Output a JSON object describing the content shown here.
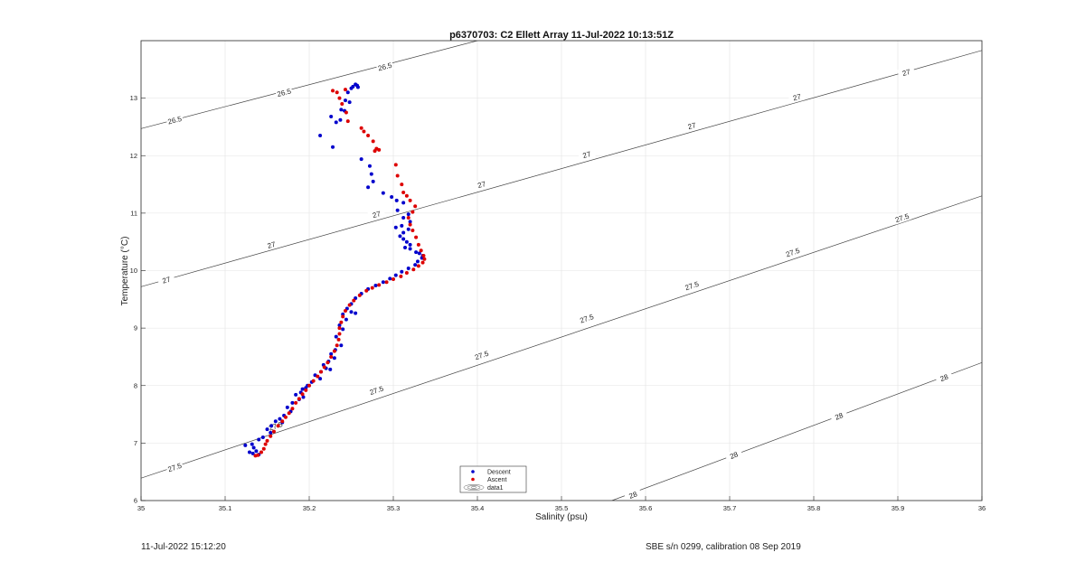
{
  "chart_data": {
    "type": "scatter",
    "title": "p6370703: C2 Ellett Array 11-Jul-2022 10:13:51Z",
    "xlabel": "Salinity (psu)",
    "ylabel": "Temperature (°C)",
    "xlim": [
      35,
      36
    ],
    "ylim": [
      6,
      14
    ],
    "xticks": [
      35,
      35.1,
      35.2,
      35.3,
      35.4,
      35.5,
      35.6,
      35.7,
      35.8,
      35.9,
      36
    ],
    "xtick_labels": [
      "35",
      "35.1",
      "35.2",
      "35.3",
      "35.4",
      "35.5",
      "35.6",
      "35.7",
      "35.8",
      "35.9",
      "36"
    ],
    "yticks": [
      6,
      7,
      8,
      9,
      10,
      11,
      12,
      13
    ],
    "ytick_labels": [
      "6",
      "7",
      "8",
      "9",
      "10",
      "11",
      "12",
      "13"
    ],
    "grid": true,
    "legend_position": "bottom-center",
    "legend": [
      {
        "name": "Descent",
        "color": "#0000cc",
        "marker": "dot"
      },
      {
        "name": "Ascent",
        "color": "#dd0000",
        "marker": "dot"
      },
      {
        "name": "data1",
        "color": "#555555",
        "marker": "contour"
      }
    ],
    "contours": [
      {
        "level": "26.5",
        "points": [
          [
            35,
            12.47
          ],
          [
            35.4,
            14.0
          ]
        ],
        "labels": [
          [
            35.04,
            12.62
          ],
          [
            35.17,
            13.1
          ],
          [
            35.29,
            13.55
          ]
        ]
      },
      {
        "level": "27",
        "points": [
          [
            35,
            9.72
          ],
          [
            36,
            13.83
          ]
        ],
        "labels": [
          [
            35.03,
            9.84
          ],
          [
            35.155,
            10.45
          ],
          [
            35.28,
            10.98
          ],
          [
            35.405,
            11.5
          ],
          [
            35.53,
            12.02
          ],
          [
            35.655,
            12.52
          ],
          [
            35.78,
            13.02
          ],
          [
            35.91,
            13.45
          ]
        ]
      },
      {
        "level": "27.5",
        "points": [
          [
            35,
            6.39
          ],
          [
            36,
            11.3
          ]
        ],
        "labels": [
          [
            35.04,
            6.58
          ],
          [
            35.16,
            7.3
          ],
          [
            35.28,
            7.92
          ],
          [
            35.405,
            8.53
          ],
          [
            35.53,
            9.17
          ],
          [
            35.655,
            9.74
          ],
          [
            35.775,
            10.32
          ],
          [
            35.905,
            10.92
          ]
        ]
      },
      {
        "level": "28",
        "points": [
          [
            35.56,
            6.0
          ],
          [
            36,
            8.4
          ]
        ],
        "labels": [
          [
            35.585,
            6.1
          ],
          [
            35.705,
            6.79
          ],
          [
            35.83,
            7.47
          ],
          [
            35.955,
            8.14
          ]
        ]
      }
    ],
    "series": [
      {
        "name": "Descent",
        "color": "#0000cc",
        "points": [
          [
            35.255,
            13.24
          ],
          [
            35.257,
            13.22
          ],
          [
            35.252,
            13.2
          ],
          [
            35.258,
            13.19
          ],
          [
            35.25,
            13.17
          ],
          [
            35.246,
            13.1
          ],
          [
            35.243,
            12.96
          ],
          [
            35.248,
            12.93
          ],
          [
            35.238,
            12.8
          ],
          [
            35.242,
            12.78
          ],
          [
            35.237,
            12.62
          ],
          [
            35.232,
            12.58
          ],
          [
            35.226,
            12.68
          ],
          [
            35.213,
            12.35
          ],
          [
            35.228,
            12.15
          ],
          [
            35.262,
            11.94
          ],
          [
            35.272,
            11.82
          ],
          [
            35.274,
            11.68
          ],
          [
            35.276,
            11.55
          ],
          [
            35.27,
            11.45
          ],
          [
            35.288,
            11.35
          ],
          [
            35.298,
            11.28
          ],
          [
            35.304,
            11.22
          ],
          [
            35.312,
            11.18
          ],
          [
            35.305,
            11.05
          ],
          [
            35.318,
            10.98
          ],
          [
            35.312,
            10.92
          ],
          [
            35.32,
            10.85
          ],
          [
            35.31,
            10.78
          ],
          [
            35.303,
            10.75
          ],
          [
            35.318,
            10.72
          ],
          [
            35.312,
            10.66
          ],
          [
            35.308,
            10.6
          ],
          [
            35.312,
            10.55
          ],
          [
            35.316,
            10.5
          ],
          [
            35.32,
            10.45
          ],
          [
            35.314,
            10.4
          ],
          [
            35.32,
            10.38
          ],
          [
            35.327,
            10.32
          ],
          [
            35.331,
            10.3
          ],
          [
            35.335,
            10.26
          ],
          [
            35.334,
            10.22
          ],
          [
            35.329,
            10.16
          ],
          [
            35.326,
            10.1
          ],
          [
            35.318,
            10.04
          ],
          [
            35.31,
            9.98
          ],
          [
            35.303,
            9.92
          ],
          [
            35.296,
            9.86
          ],
          [
            35.288,
            9.8
          ],
          [
            35.279,
            9.74
          ],
          [
            35.27,
            9.68
          ],
          [
            35.262,
            9.6
          ],
          [
            35.255,
            9.52
          ],
          [
            35.25,
            9.42
          ],
          [
            35.245,
            9.34
          ],
          [
            35.24,
            9.24
          ],
          [
            35.25,
            9.28
          ],
          [
            35.255,
            9.26
          ],
          [
            35.244,
            9.15
          ],
          [
            35.236,
            9.05
          ],
          [
            35.24,
            8.98
          ],
          [
            35.232,
            8.85
          ],
          [
            35.238,
            8.7
          ],
          [
            35.231,
            8.62
          ],
          [
            35.226,
            8.55
          ],
          [
            35.23,
            8.48
          ],
          [
            35.223,
            8.42
          ],
          [
            35.217,
            8.36
          ],
          [
            35.22,
            8.3
          ],
          [
            35.225,
            8.28
          ],
          [
            35.214,
            8.24
          ],
          [
            35.207,
            8.18
          ],
          [
            35.213,
            8.12
          ],
          [
            35.203,
            8.06
          ],
          [
            35.198,
            8.0
          ],
          [
            35.192,
            7.94
          ],
          [
            35.196,
            7.96
          ],
          [
            35.19,
            7.88
          ],
          [
            35.184,
            7.84
          ],
          [
            35.193,
            7.8
          ],
          [
            35.188,
            7.76
          ],
          [
            35.18,
            7.7
          ],
          [
            35.174,
            7.62
          ],
          [
            35.178,
            7.55
          ],
          [
            35.17,
            7.48
          ],
          [
            35.165,
            7.42
          ],
          [
            35.16,
            7.38
          ],
          [
            35.168,
            7.36
          ],
          [
            35.155,
            7.3
          ],
          [
            35.15,
            7.24
          ],
          [
            35.154,
            7.18
          ],
          [
            35.145,
            7.1
          ],
          [
            35.14,
            7.06
          ],
          [
            35.132,
            6.98
          ],
          [
            35.124,
            6.96
          ],
          [
            35.134,
            6.92
          ],
          [
            35.137,
            6.86
          ],
          [
            35.133,
            6.82
          ],
          [
            35.129,
            6.84
          ],
          [
            35.14,
            6.8
          ]
        ]
      },
      {
        "name": "Ascent",
        "color": "#dd0000",
        "points": [
          [
            35.228,
            13.13
          ],
          [
            35.233,
            13.1
          ],
          [
            35.243,
            13.15
          ],
          [
            35.236,
            13.0
          ],
          [
            35.239,
            12.9
          ],
          [
            35.244,
            12.75
          ],
          [
            35.246,
            12.6
          ],
          [
            35.262,
            12.48
          ],
          [
            35.265,
            12.42
          ],
          [
            35.27,
            12.35
          ],
          [
            35.276,
            12.25
          ],
          [
            35.28,
            12.12
          ],
          [
            35.283,
            12.1
          ],
          [
            35.278,
            12.08
          ],
          [
            35.28,
            12.12
          ],
          [
            35.303,
            11.84
          ],
          [
            35.305,
            11.65
          ],
          [
            35.31,
            11.5
          ],
          [
            35.312,
            11.36
          ],
          [
            35.316,
            11.3
          ],
          [
            35.32,
            11.22
          ],
          [
            35.326,
            11.12
          ],
          [
            35.323,
            11.02
          ],
          [
            35.318,
            10.92
          ],
          [
            35.32,
            10.8
          ],
          [
            35.323,
            10.7
          ],
          [
            35.327,
            10.58
          ],
          [
            35.33,
            10.45
          ],
          [
            35.333,
            10.35
          ],
          [
            35.336,
            10.26
          ],
          [
            35.337,
            10.2
          ],
          [
            35.335,
            10.14
          ],
          [
            35.33,
            10.08
          ],
          [
            35.324,
            10.02
          ],
          [
            35.316,
            9.96
          ],
          [
            35.309,
            9.9
          ],
          [
            35.3,
            9.85
          ],
          [
            35.292,
            9.8
          ],
          [
            35.283,
            9.75
          ],
          [
            35.275,
            9.7
          ],
          [
            35.268,
            9.65
          ],
          [
            35.26,
            9.57
          ],
          [
            35.253,
            9.48
          ],
          [
            35.248,
            9.4
          ],
          [
            35.243,
            9.3
          ],
          [
            35.24,
            9.2
          ],
          [
            35.238,
            9.1
          ],
          [
            35.236,
            9.0
          ],
          [
            35.236,
            8.9
          ],
          [
            35.235,
            8.8
          ],
          [
            35.233,
            8.7
          ],
          [
            35.23,
            8.6
          ],
          [
            35.226,
            8.5
          ],
          [
            35.222,
            8.4
          ],
          [
            35.218,
            8.32
          ],
          [
            35.214,
            8.24
          ],
          [
            35.21,
            8.16
          ],
          [
            35.205,
            8.08
          ],
          [
            35.2,
            8.0
          ],
          [
            35.196,
            7.92
          ],
          [
            35.192,
            7.85
          ],
          [
            35.188,
            7.77
          ],
          [
            35.184,
            7.7
          ],
          [
            35.18,
            7.6
          ],
          [
            35.176,
            7.52
          ],
          [
            35.172,
            7.45
          ],
          [
            35.168,
            7.38
          ],
          [
            35.163,
            7.3
          ],
          [
            35.158,
            7.2
          ],
          [
            35.154,
            7.12
          ],
          [
            35.15,
            7.04
          ],
          [
            35.148,
            6.98
          ],
          [
            35.146,
            6.9
          ],
          [
            35.143,
            6.84
          ],
          [
            35.139,
            6.79
          ],
          [
            35.136,
            6.78
          ]
        ]
      }
    ]
  },
  "footer": {
    "timestamp": "11-Jul-2022 15:12:20",
    "calibration": "SBE s/n 0299, calibration 08 Sep 2019"
  }
}
